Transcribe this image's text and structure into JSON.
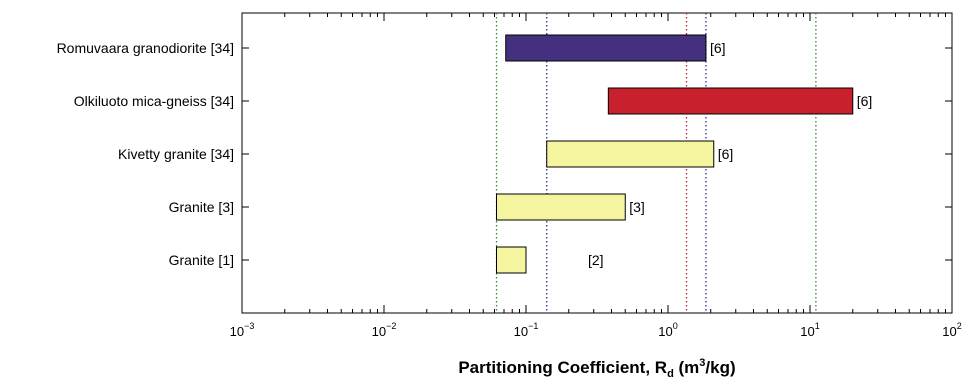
{
  "chart_data": {
    "type": "bar",
    "orientation": "horizontal",
    "x_scale": "log",
    "xlim": [
      0.001,
      100
    ],
    "x_ticks": [
      {
        "base": "10",
        "exp": "−3"
      },
      {
        "base": "10",
        "exp": "−2"
      },
      {
        "base": "10",
        "exp": "−1"
      },
      {
        "base": "10",
        "exp": "0"
      },
      {
        "base": "10",
        "exp": "1"
      },
      {
        "base": "10",
        "exp": "2"
      }
    ],
    "xlabel": {
      "main": "Partitioning Coefficient, R",
      "sub": "d",
      "unit_open": " (m",
      "unit_sup": "3",
      "unit_close": "/kg)"
    },
    "grid": false,
    "bars": [
      {
        "category": "Romuvaara granodiorite [34]",
        "min": 0.072,
        "max": 1.85,
        "color": "#45307f",
        "ref": "[6]"
      },
      {
        "category": "Olkiluoto mica-gneiss [34]",
        "min": 0.38,
        "max": 20,
        "color": "#c8202c",
        "ref": "[6]"
      },
      {
        "category": "Kivetty granite [34]",
        "min": 0.14,
        "max": 2.1,
        "color": "#f5f5a0",
        "ref": "[6]"
      },
      {
        "category": "Granite [3]",
        "min": 0.062,
        "max": 0.5,
        "color": "#f5f5a0",
        "ref": "[3]"
      },
      {
        "category": "Granite [1]",
        "min": 0.062,
        "max": 0.1,
        "color": "#f5f5a0",
        "ref": "[2]"
      }
    ],
    "reference_lines": [
      {
        "x": 0.062,
        "color": "#2e8b2e"
      },
      {
        "x": 0.14,
        "color": "#2c2c9a"
      },
      {
        "x": 1.35,
        "color": "#c8202c"
      },
      {
        "x": 1.85,
        "color": "#2c2c9a"
      },
      {
        "x": 11,
        "color": "#2e8b2e"
      }
    ]
  }
}
